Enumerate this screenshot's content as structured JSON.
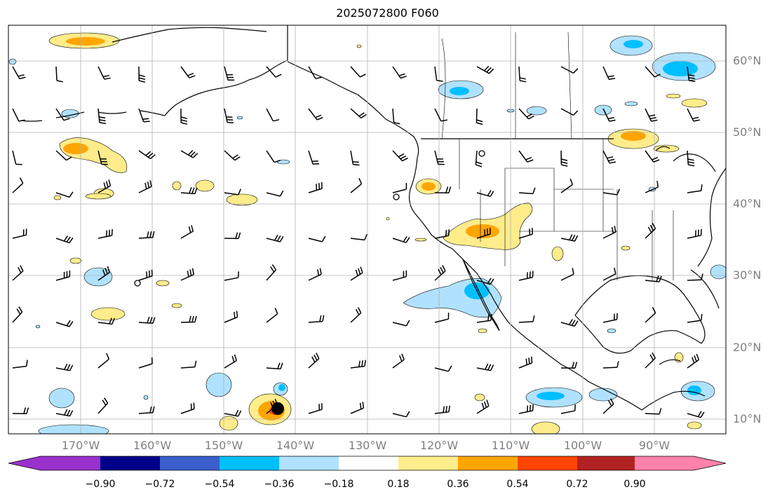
{
  "title": "2025072800 F060",
  "lat_labels": [
    "60°N",
    "50°N",
    "40°N",
    "30°N",
    "20°N",
    "10°N"
  ],
  "lon_labels": [
    "170°W",
    "160°W",
    "150°W",
    "140°W",
    "130°W",
    "120°W",
    "110°W",
    "100°W",
    "90°W"
  ],
  "colorbar": {
    "ticks": [
      "−0.90",
      "−0.72",
      "−0.54",
      "−0.36",
      "−0.18",
      "0.18",
      "0.36",
      "0.54",
      "0.72",
      "0.90"
    ],
    "colors": [
      "#9932cc",
      "#00008b",
      "#3a5fcd",
      "#00bfff",
      "#b0e2ff",
      "#ffffff",
      "#ffec8b",
      "#ffa500",
      "#ff4500",
      "#b22222",
      "#ff82ab"
    ]
  },
  "map": {
    "extent_lon": [
      -180,
      -80
    ],
    "extent_lat": [
      8,
      66
    ],
    "gridlines": true,
    "storm_marker": {
      "lon": -140,
      "lat": 11
    }
  }
}
